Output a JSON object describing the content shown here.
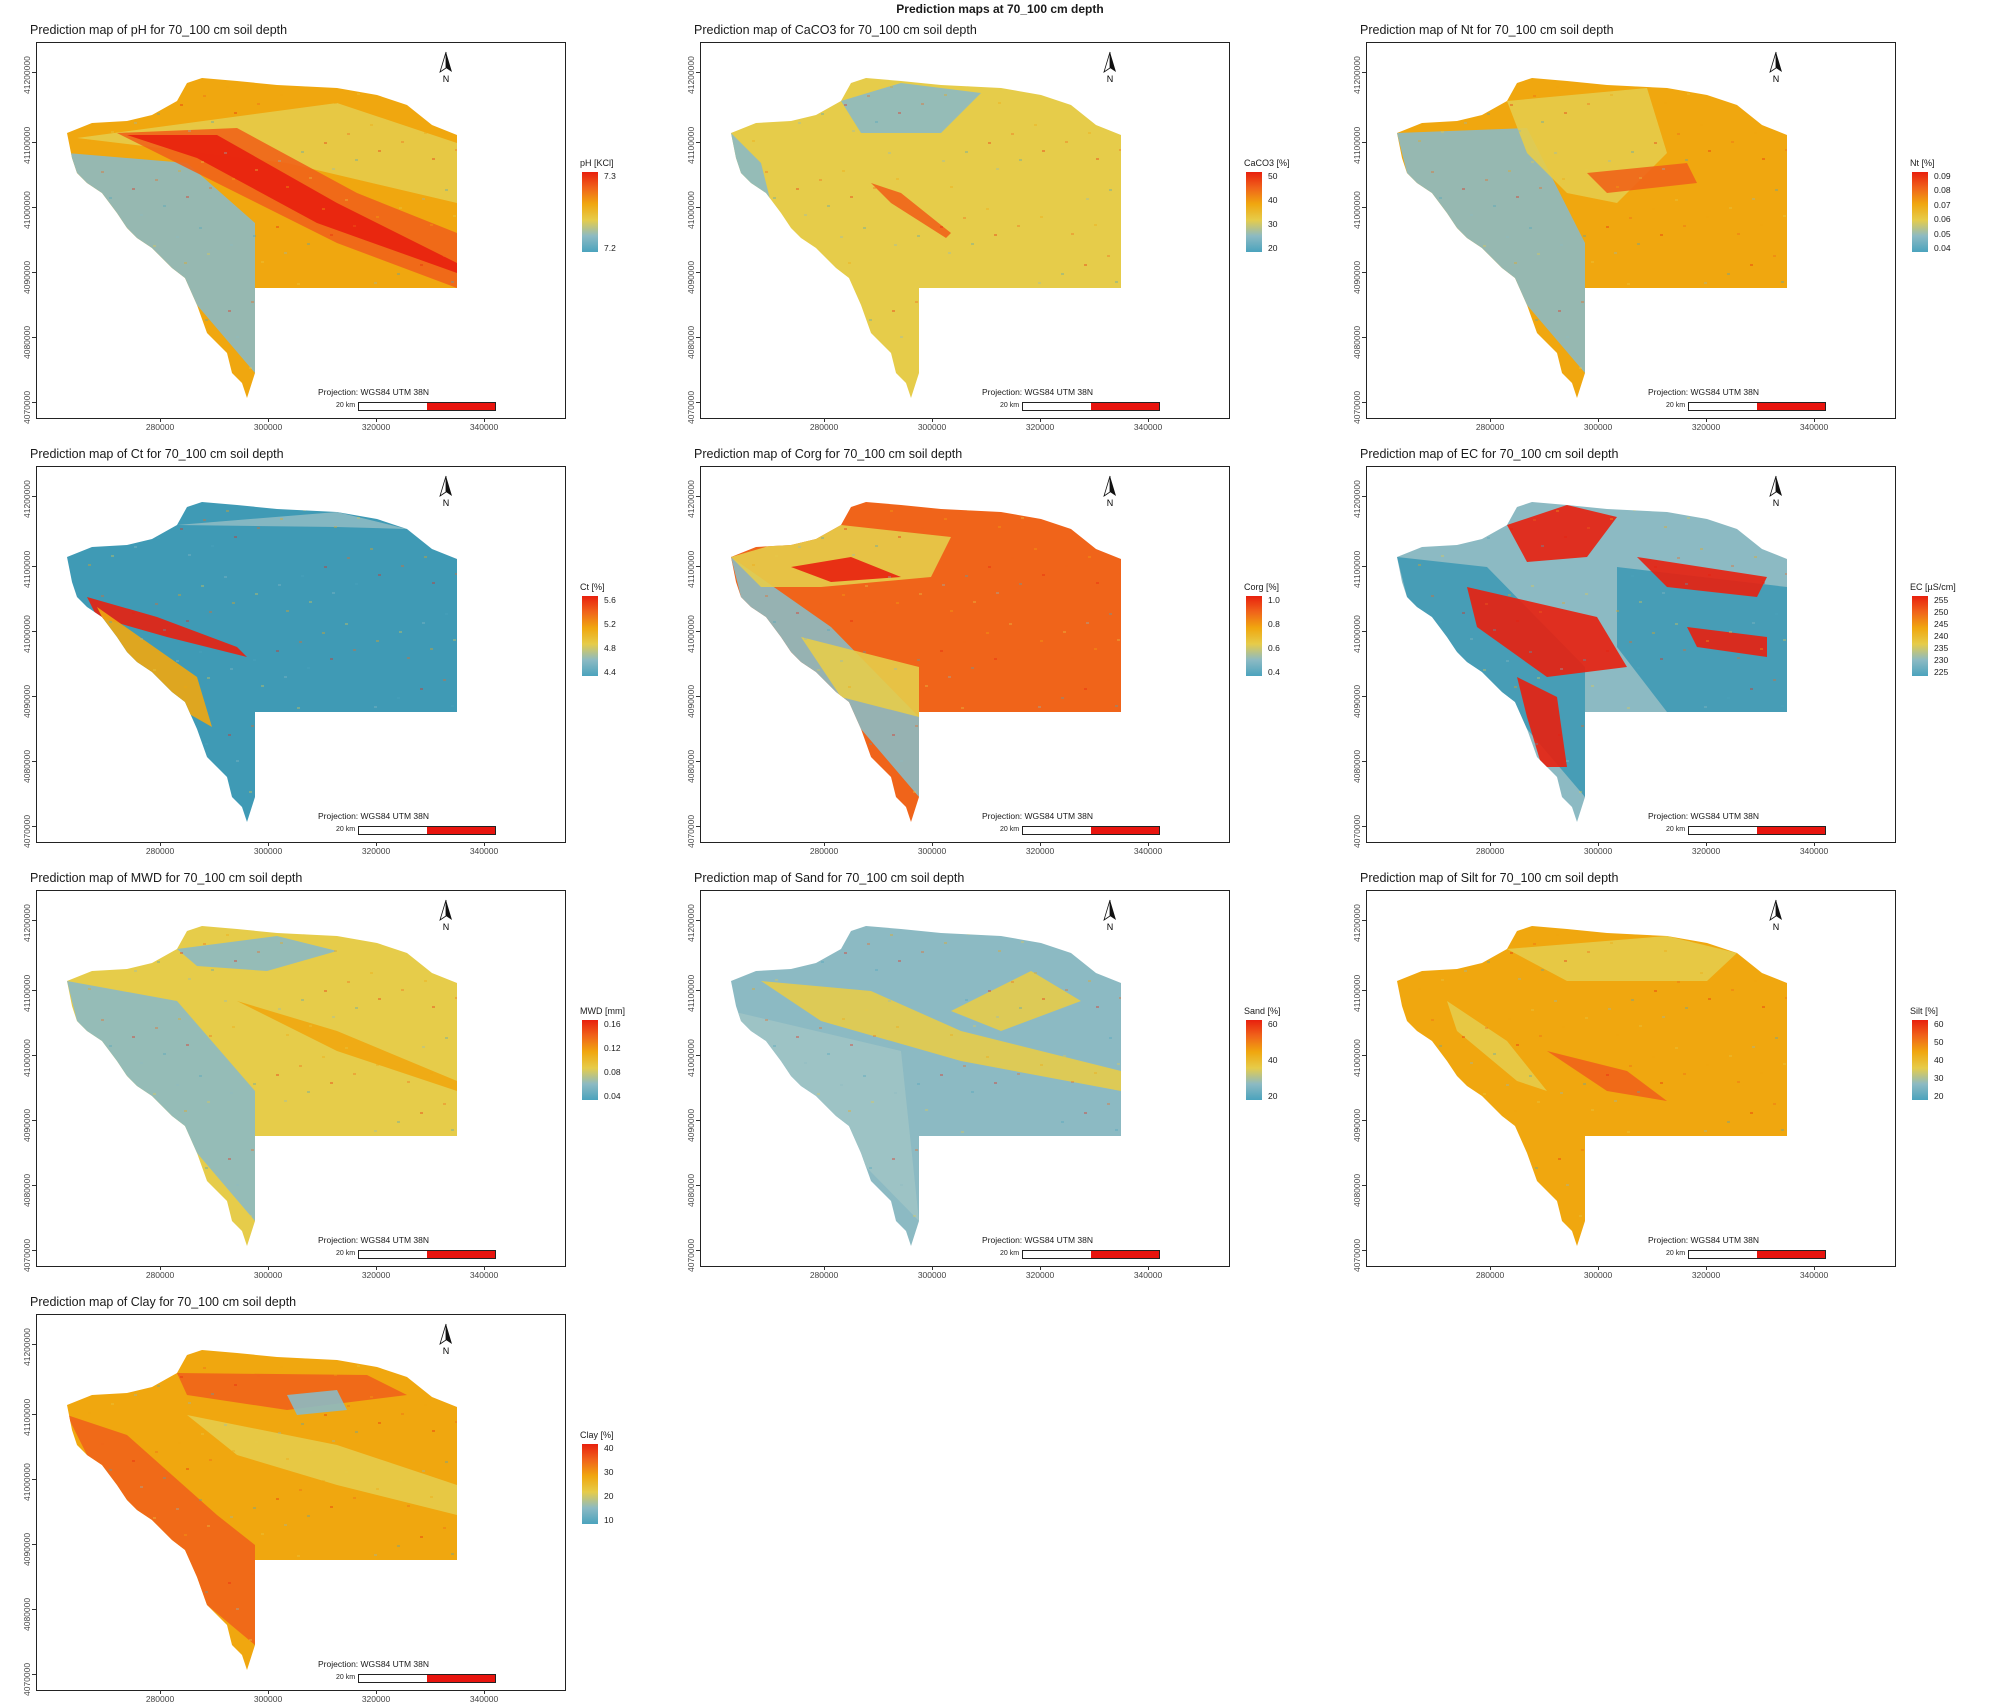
{
  "main_title": "Prediction maps at 70_100 cm depth",
  "colors": {
    "scale": [
      "#4ba3bd",
      "#8cbac3",
      "#e6cc4a",
      "#f0a70f",
      "#f0641a",
      "#e8200e"
    ],
    "scale_bar_red": "#e8140e",
    "frame": "#222222"
  },
  "axis": {
    "y_ticks": [
      "41200000",
      "41100000",
      "41000000",
      "4090000",
      "4080000",
      "4070000"
    ],
    "x_ticks": [
      "280000",
      "300000",
      "320000",
      "340000"
    ]
  },
  "projection_label": "Projection: WGS84 UTM 38N",
  "scale_label": "20 km",
  "north_label": "N",
  "maps": [
    {
      "title": "Prediction map of pH for 70_100 cm soil depth",
      "legend_title": "pH [KCl]",
      "legend_ticks": [
        "7.3",
        "7.2"
      ],
      "pattern": "ph"
    },
    {
      "title": "Prediction map of CaCO3 for 70_100 cm soil depth",
      "legend_title": "CaCO3 [%]",
      "legend_ticks": [
        "50",
        "40",
        "30",
        "20"
      ],
      "pattern": "caco3"
    },
    {
      "title": "Prediction map of Nt for 70_100 cm soil depth",
      "legend_title": "Nt [%]",
      "legend_ticks": [
        "0.09",
        "0.08",
        "0.07",
        "0.06",
        "0.05",
        "0.04"
      ],
      "pattern": "nt"
    },
    {
      "title": "Prediction map of Ct for 70_100 cm soil depth",
      "legend_title": "Ct [%]",
      "legend_ticks": [
        "5.6",
        "5.2",
        "4.8",
        "4.4"
      ],
      "pattern": "ct"
    },
    {
      "title": "Prediction map of Corg for 70_100 cm soil depth",
      "legend_title": "Corg [%]",
      "legend_ticks": [
        "1.0",
        "0.8",
        "0.6",
        "0.4"
      ],
      "pattern": "corg"
    },
    {
      "title": "Prediction map of EC for 70_100 cm soil depth",
      "legend_title": "EC [µS/cm]",
      "legend_ticks": [
        "255",
        "250",
        "245",
        "240",
        "235",
        "230",
        "225"
      ],
      "pattern": "ec"
    },
    {
      "title": "Prediction map of MWD for 70_100 cm soil depth",
      "legend_title": "MWD [mm]",
      "legend_ticks": [
        "0.16",
        "0.12",
        "0.08",
        "0.04"
      ],
      "pattern": "mwd"
    },
    {
      "title": "Prediction map of Sand for 70_100 cm soil depth",
      "legend_title": "Sand [%]",
      "legend_ticks": [
        "60",
        "40",
        "20"
      ],
      "pattern": "sand"
    },
    {
      "title": "Prediction map of Silt for 70_100 cm soil depth",
      "legend_title": "Silt [%]",
      "legend_ticks": [
        "60",
        "50",
        "40",
        "30",
        "20"
      ],
      "pattern": "silt"
    },
    {
      "title": "Prediction map of Clay for 70_100 cm soil depth",
      "legend_title": "Clay [%]",
      "legend_ticks": [
        "40",
        "30",
        "20",
        "10"
      ],
      "pattern": "clay"
    }
  ]
}
